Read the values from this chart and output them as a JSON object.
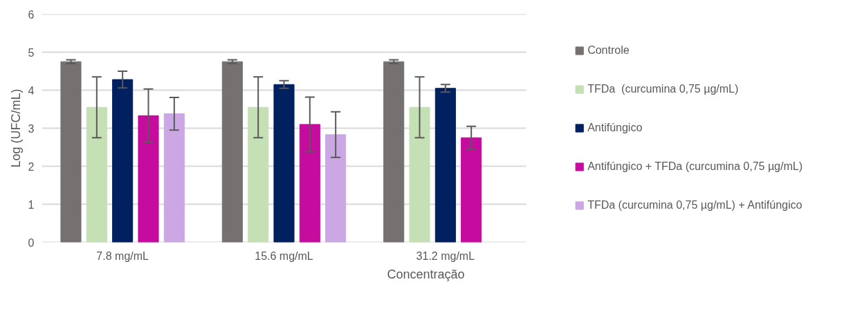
{
  "chart_data": {
    "type": "bar",
    "xlabel": "Concentração",
    "ylabel": "Log (UFC/mL)",
    "categories": [
      "7.8 mg/mL",
      "15.6 mg/mL",
      "31.2 mg/mL"
    ],
    "series": [
      {
        "name": "Controle",
        "color": "#767171",
        "values": [
          4.75,
          4.75,
          4.75
        ],
        "errors": [
          0.05,
          0.05,
          0.05
        ]
      },
      {
        "name": "TFDa  (curcumina 0,75 µg/mL)",
        "color": "#c5e0b4",
        "values": [
          3.55,
          3.55,
          3.55
        ],
        "errors": [
          0.8,
          0.8,
          0.8
        ]
      },
      {
        "name": "Antifúngico",
        "color": "#002060",
        "values": [
          4.28,
          4.15,
          4.05
        ],
        "errors": [
          0.22,
          0.1,
          0.1
        ]
      },
      {
        "name": "Antifúngico + TFDa (curcumina 0,75 µg/mL)",
        "color": "#c60c9e",
        "values": [
          3.33,
          3.1,
          2.75
        ],
        "errors": [
          0.7,
          0.72,
          0.3
        ]
      },
      {
        "name": "TFDa (curcumina 0,75 µg/mL) + Antifúngico",
        "color": "#cba8e4",
        "values": [
          3.38,
          2.83,
          null
        ],
        "errors": [
          0.43,
          0.6,
          null
        ]
      }
    ],
    "ylim": [
      0,
      6
    ],
    "yticks": [
      0,
      1,
      2,
      3,
      4,
      5,
      6
    ],
    "grid": "y",
    "legend": "right"
  }
}
